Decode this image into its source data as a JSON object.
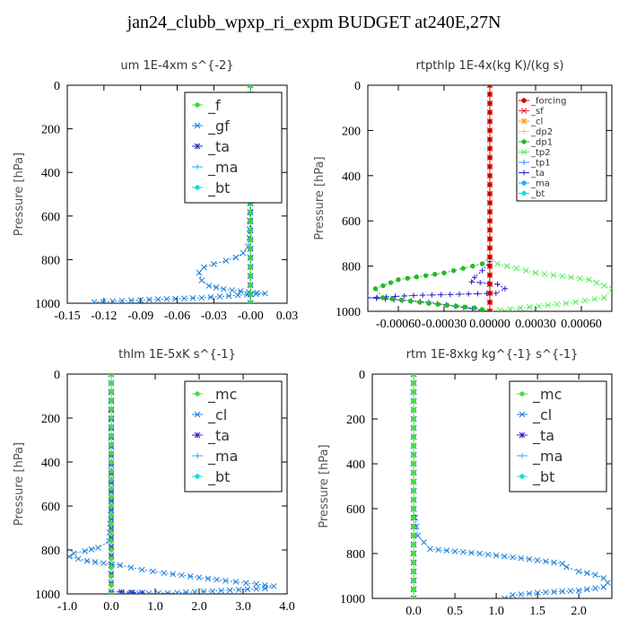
{
  "figure": {
    "title": "jan24_clubb_wpxp_ri_expm  BUDGET at240E,27N"
  },
  "colors": {
    "forcing": "#cc0000",
    "sf": "#ff2020",
    "cl": "#3399ff",
    "cl_small": "#ff9900",
    "dp2": "#ffcc33",
    "dp1": "#22bb22",
    "tp2": "#55ee55",
    "tp1": "#3388ff",
    "ta": "#2222cc",
    "ma": "#22aaff",
    "bt": "#11dddd",
    "f": "#33dd33",
    "gf": "#1a7fdd",
    "mc": "#44dd44"
  },
  "chart_data": [
    {
      "id": "um",
      "type": "line",
      "title": "um   1E-4xm s^{-2}",
      "ylabel": "Pressure [hPa]",
      "xlim": [
        -0.15,
        0.03
      ],
      "ylim": [
        1000,
        0
      ],
      "xticks": [
        "-0.15",
        "-0.12",
        "-0.09",
        "-0.06",
        "-0.03",
        "-0.00",
        "0.03"
      ],
      "yticks": [
        "0",
        "200",
        "400",
        "600",
        "800",
        "1000"
      ],
      "legend": {
        "position": "top-right",
        "size": "large"
      },
      "series": [
        {
          "name": "_f",
          "color_key": "f",
          "x": [
            0.0,
            0.0
          ],
          "y": [
            0,
            1000
          ]
        },
        {
          "name": "_gf",
          "color_key": "gf",
          "x": [
            0.0,
            0.0,
            -0.001,
            -0.002,
            -0.006,
            -0.012,
            -0.02,
            -0.03,
            -0.038,
            -0.042,
            -0.04,
            -0.034,
            -0.022,
            -0.008,
            0.012,
            -0.04,
            -0.09,
            -0.128
          ],
          "y": [
            0,
            500,
            700,
            740,
            770,
            790,
            805,
            820,
            835,
            860,
            895,
            920,
            935,
            945,
            955,
            975,
            985,
            995
          ]
        },
        {
          "name": "_ta",
          "color_key": "ta",
          "x": [
            0.0,
            0.0
          ],
          "y": [
            0,
            1000
          ]
        },
        {
          "name": "_ma",
          "color_key": "ma",
          "x": [
            0.0,
            0.0
          ],
          "y": [
            0,
            1000
          ]
        },
        {
          "name": "_bt",
          "color_key": "bt",
          "x": [
            0.0,
            0.0
          ],
          "y": [
            0,
            1000
          ]
        }
      ]
    },
    {
      "id": "rtpthlp",
      "type": "line",
      "title": "rtpthlp   1E-4x(kg K)/(kg s)",
      "ylabel": "Pressure [hPa]",
      "xlim": [
        -0.0008,
        0.0008
      ],
      "ylim": [
        1000,
        0
      ],
      "xticks": [
        "-0.00060",
        "-0.00030",
        "0.00000",
        "0.00030",
        "0.00060"
      ],
      "yticks": [
        "0",
        "200",
        "400",
        "600",
        "800",
        "1000"
      ],
      "legend": {
        "position": "top-right",
        "size": "small"
      },
      "series": [
        {
          "name": "_forcing",
          "color_key": "forcing",
          "x": [
            0.0,
            0.0
          ],
          "y": [
            0,
            1000
          ]
        },
        {
          "name": "_sf",
          "color_key": "sf",
          "x": [
            0.0,
            0.0
          ],
          "y": [
            0,
            1000
          ]
        },
        {
          "name": "_cl",
          "color_key": "cl_small",
          "x": [
            0.0,
            0.0
          ],
          "y": [
            0,
            1000
          ]
        },
        {
          "name": "_dp2",
          "color_key": "dp2",
          "x": [
            0.0,
            0.0
          ],
          "y": [
            0,
            1000
          ]
        },
        {
          "name": "_dp1",
          "color_key": "dp1",
          "x": [
            0.0,
            -5e-05,
            -0.0003,
            -0.0006,
            -0.00075,
            -0.0007,
            -0.0004,
            -0.0001,
            0.0
          ],
          "y": [
            760,
            790,
            830,
            860,
            900,
            940,
            965,
            985,
            1000
          ]
        },
        {
          "name": "_tp2",
          "color_key": "tp2",
          "x": [
            0.0,
            5e-05,
            0.0003,
            0.00065,
            0.0008,
            0.00075,
            0.0005,
            0.0002,
            0.0
          ],
          "y": [
            760,
            790,
            830,
            860,
            900,
            940,
            965,
            985,
            1000
          ]
        },
        {
          "name": "_tp1",
          "color_key": "tp1",
          "x": [
            0.0,
            0.0
          ],
          "y": [
            0,
            1000
          ]
        },
        {
          "name": "_ta",
          "color_key": "ta",
          "x": [
            0.0,
            -5e-05,
            -0.0001,
            -0.00012,
            5e-05,
            0.0001,
            4e-05,
            -0.0005,
            -0.0008,
            -0.0004,
            0.0
          ],
          "y": [
            780,
            820,
            850,
            870,
            880,
            900,
            920,
            930,
            940,
            960,
            1000
          ]
        },
        {
          "name": "_ma",
          "color_key": "ma",
          "x": [
            0.0,
            0.0
          ],
          "y": [
            0,
            1000
          ]
        },
        {
          "name": "_bt",
          "color_key": "bt",
          "x": [
            0.0,
            0.0
          ],
          "y": [
            0,
            1000
          ]
        }
      ]
    },
    {
      "id": "thlm",
      "type": "line",
      "title": "thlm   1E-5xK s^{-1}",
      "ylabel": "Pressure [hPa]",
      "xlim": [
        -1.0,
        4.0
      ],
      "ylim": [
        1000,
        0
      ],
      "xticks": [
        "-1.0",
        "0.0",
        "1.0",
        "2.0",
        "3.0",
        "4.0"
      ],
      "yticks": [
        "0",
        "200",
        "400",
        "600",
        "800",
        "1000"
      ],
      "legend": {
        "position": "top-right",
        "size": "large"
      },
      "series": [
        {
          "name": "_mc",
          "color_key": "mc",
          "x": [
            0.0,
            0.0
          ],
          "y": [
            0,
            1000
          ]
        },
        {
          "name": "_cl",
          "color_key": "gf",
          "x": [
            0.0,
            0.0,
            -0.05,
            -0.3,
            -0.6,
            -0.85,
            -0.95,
            -0.55,
            0.2,
            0.7,
            1.2,
            1.8,
            2.6,
            3.3,
            3.7,
            3.5,
            2.5,
            1.5,
            0.0
          ],
          "y": [
            0,
            600,
            760,
            790,
            805,
            815,
            830,
            850,
            870,
            890,
            905,
            920,
            940,
            955,
            965,
            975,
            985,
            995,
            1000
          ]
        },
        {
          "name": "_ta",
          "color_key": "ta",
          "x": [
            0.0,
            0.0,
            0.7,
            0.0
          ],
          "y": [
            0,
            990,
            995,
            1000
          ]
        },
        {
          "name": "_ma",
          "color_key": "ma",
          "x": [
            0.0,
            0.0
          ],
          "y": [
            0,
            1000
          ]
        },
        {
          "name": "_bt",
          "color_key": "bt",
          "x": [
            0.0,
            0.0
          ],
          "y": [
            0,
            1000
          ]
        }
      ]
    },
    {
      "id": "rtm",
      "type": "line",
      "title": "rtm   1E-8xkg kg^{-1} s^{-1}",
      "ylabel": "Pressure [hPa]",
      "xlim": [
        -0.5,
        2.4
      ],
      "ylim": [
        1000,
        0
      ],
      "xticks": [
        "0.0",
        "0.5",
        "1.0",
        "1.5",
        "2.0"
      ],
      "yticks": [
        "0",
        "200",
        "400",
        "600",
        "800",
        "1000"
      ],
      "legend": {
        "position": "top-right",
        "size": "large"
      },
      "series": [
        {
          "name": "_mc",
          "color_key": "mc",
          "x": [
            0.0,
            0.0
          ],
          "y": [
            0,
            1000
          ]
        },
        {
          "name": "_cl",
          "color_key": "gf",
          "x": [
            0.0,
            0.0,
            0.05,
            0.2,
            0.8,
            1.4,
            1.8,
            1.85,
            2.0,
            2.2,
            2.3,
            2.35,
            2.3,
            2.0,
            1.5,
            1.2,
            1.1
          ],
          "y": [
            0,
            600,
            720,
            780,
            800,
            825,
            845,
            860,
            880,
            895,
            910,
            930,
            950,
            965,
            975,
            985,
            1000
          ]
        },
        {
          "name": "_ta",
          "color_key": "ta",
          "x": [
            0.0,
            0.0
          ],
          "y": [
            0,
            1000
          ]
        },
        {
          "name": "_ma",
          "color_key": "ma",
          "x": [
            0.0,
            0.0
          ],
          "y": [
            0,
            1000
          ]
        },
        {
          "name": "_bt",
          "color_key": "bt",
          "x": [
            0.0,
            0.0
          ],
          "y": [
            0,
            1000
          ]
        }
      ]
    }
  ]
}
